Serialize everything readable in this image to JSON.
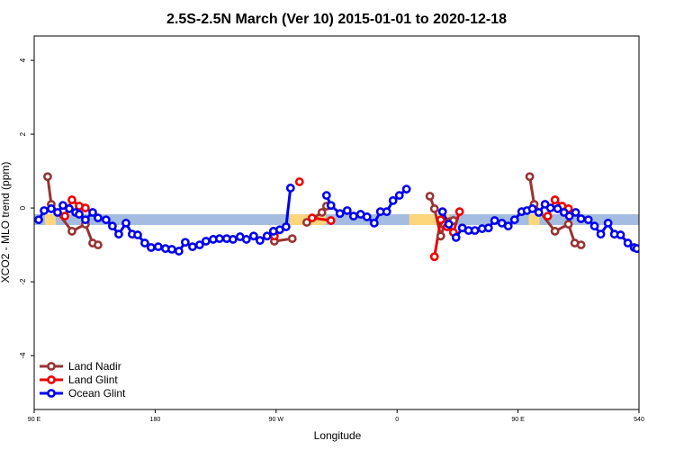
{
  "chart_data": {
    "type": "line",
    "title": "2.5S-2.5N March (Ver 10)   2015-01-01 to 2020-12-18",
    "x_label": "Longitude",
    "y_label": "XCO2 - MLO trend (ppm)",
    "xlim": [
      90,
      540
    ],
    "ylim": [
      -5.46,
      4.66
    ],
    "xticks": [
      {
        "value": 90,
        "label": "90 E"
      },
      180,
      {
        "value": 270,
        "label": "90 W"
      },
      {
        "value": 360,
        "label": "0"
      },
      {
        "value": 450,
        "label": "90 E"
      },
      540
    ],
    "yticks": [
      -4,
      -2,
      0,
      2,
      4
    ],
    "legend": "bottom-left",
    "band": {
      "ylim": [
        -0.46,
        -0.17
      ],
      "color": "#a3bcdf",
      "highlight_color": "#fdd67c",
      "highlights": [
        [
          98,
          106
        ],
        [
          280,
          307
        ],
        [
          369,
          399
        ],
        [
          458,
          466
        ]
      ]
    },
    "series": [
      {
        "name": "Land Nadir",
        "color": "#993333",
        "x": [
          100,
          102.7,
          118.1,
          128.1,
          133.5,
          137.5,
          null,
          268.7,
          282,
          null,
          292.8,
          304.1,
          307.5,
          null,
          384.4,
          387.8,
          392.5,
          395.2,
          399.2,
          401.9,
          null,
          458.7,
          462,
          477.5,
          487.5,
          492.2,
          496.9
        ],
        "values": [
          0.85,
          0.1,
          -0.63,
          -0.44,
          -0.95,
          -1.0,
          null,
          -0.9,
          -0.83,
          null,
          -0.39,
          -0.12,
          0.05,
          null,
          0.32,
          -0.02,
          -0.76,
          -0.46,
          -0.37,
          -0.34,
          null,
          0.85,
          0.1,
          -0.63,
          -0.44,
          -0.95,
          -1.0
        ]
      },
      {
        "name": "Land Glint",
        "color": "#ee0000",
        "x": [
          112.8,
          118.1,
          123.5,
          128.1,
          null,
          268.7,
          null,
          287.4,
          null,
          296.8,
          310.8,
          null,
          387.8,
          392.5,
          397.2,
          401.9,
          406.5,
          null,
          472.1,
          477.5,
          482.8,
          487.5
        ],
        "values": [
          -0.22,
          0.22,
          0.05,
          0,
          null,
          -0.76,
          null,
          0.71,
          null,
          -0.27,
          -0.34,
          null,
          -1.32,
          -0.32,
          -0.51,
          -0.66,
          -0.1,
          null,
          -0.22,
          0.22,
          0.05,
          -0.02
        ]
      },
      {
        "name": "Ocean Glint",
        "color": "#0000ee",
        "x": [
          93.3,
          97.4,
          102.7,
          107.4,
          111.4,
          116.1,
          120.8,
          123.5,
          128.1,
          133.5,
          137.5,
          143.5,
          148.2,
          152.9,
          158.3,
          162.9,
          167,
          172.3,
          177,
          182.3,
          187.7,
          192.4,
          197.7,
          202.4,
          207.8,
          213.1,
          217.8,
          223.2,
          227.9,
          233.2,
          237.9,
          243.2,
          247.9,
          253.3,
          258,
          263.3,
          268,
          272.7,
          277.4,
          280.7,
          null,
          307.5,
          310.8,
          317.5,
          322.9,
          327.6,
          332.9,
          337.6,
          343,
          347.6,
          352.3,
          357,
          361.7,
          367,
          null,
          393.8,
          398.5,
          403.9,
          408.5,
          413.2,
          417.9,
          423.3,
          428,
          432.6,
          438,
          442.7,
          447.4,
          452.7,
          456.7,
          460.7,
          465.4,
          470.1,
          474.1,
          479.5,
          484.2,
          488.2,
          492.9,
          496.9,
          502.3,
          506.9,
          511.6,
          517,
          521.7,
          526.3,
          531.7,
          536.4,
          538.4
        ],
        "values": [
          -0.32,
          -0.07,
          -0.02,
          -0.12,
          0.07,
          -0.02,
          -0.12,
          -0.17,
          -0.32,
          -0.12,
          -0.27,
          -0.32,
          -0.49,
          -0.71,
          -0.41,
          -0.71,
          -0.73,
          -0.95,
          -1.07,
          -1.05,
          -1.1,
          -1.12,
          -1.17,
          -0.93,
          -1.05,
          -1.0,
          -0.9,
          -0.85,
          -0.83,
          -0.83,
          -0.85,
          -0.78,
          -0.85,
          -0.76,
          -0.88,
          -0.76,
          -0.63,
          -0.59,
          -0.51,
          0.54,
          null,
          0.34,
          0.07,
          -0.15,
          -0.07,
          -0.22,
          -0.17,
          -0.24,
          -0.41,
          -0.1,
          -0.1,
          0.2,
          0.34,
          0.51,
          null,
          -0.1,
          -0.44,
          -0.8,
          -0.54,
          -0.61,
          -0.61,
          -0.56,
          -0.54,
          -0.34,
          -0.41,
          -0.49,
          -0.32,
          -0.1,
          -0.07,
          -0.02,
          -0.12,
          0.1,
          0,
          -0.02,
          -0.12,
          -0.22,
          -0.12,
          -0.29,
          -0.32,
          -0.49,
          -0.71,
          -0.41,
          -0.71,
          -0.73,
          -0.95,
          -1.07,
          -1.1
        ]
      }
    ]
  }
}
